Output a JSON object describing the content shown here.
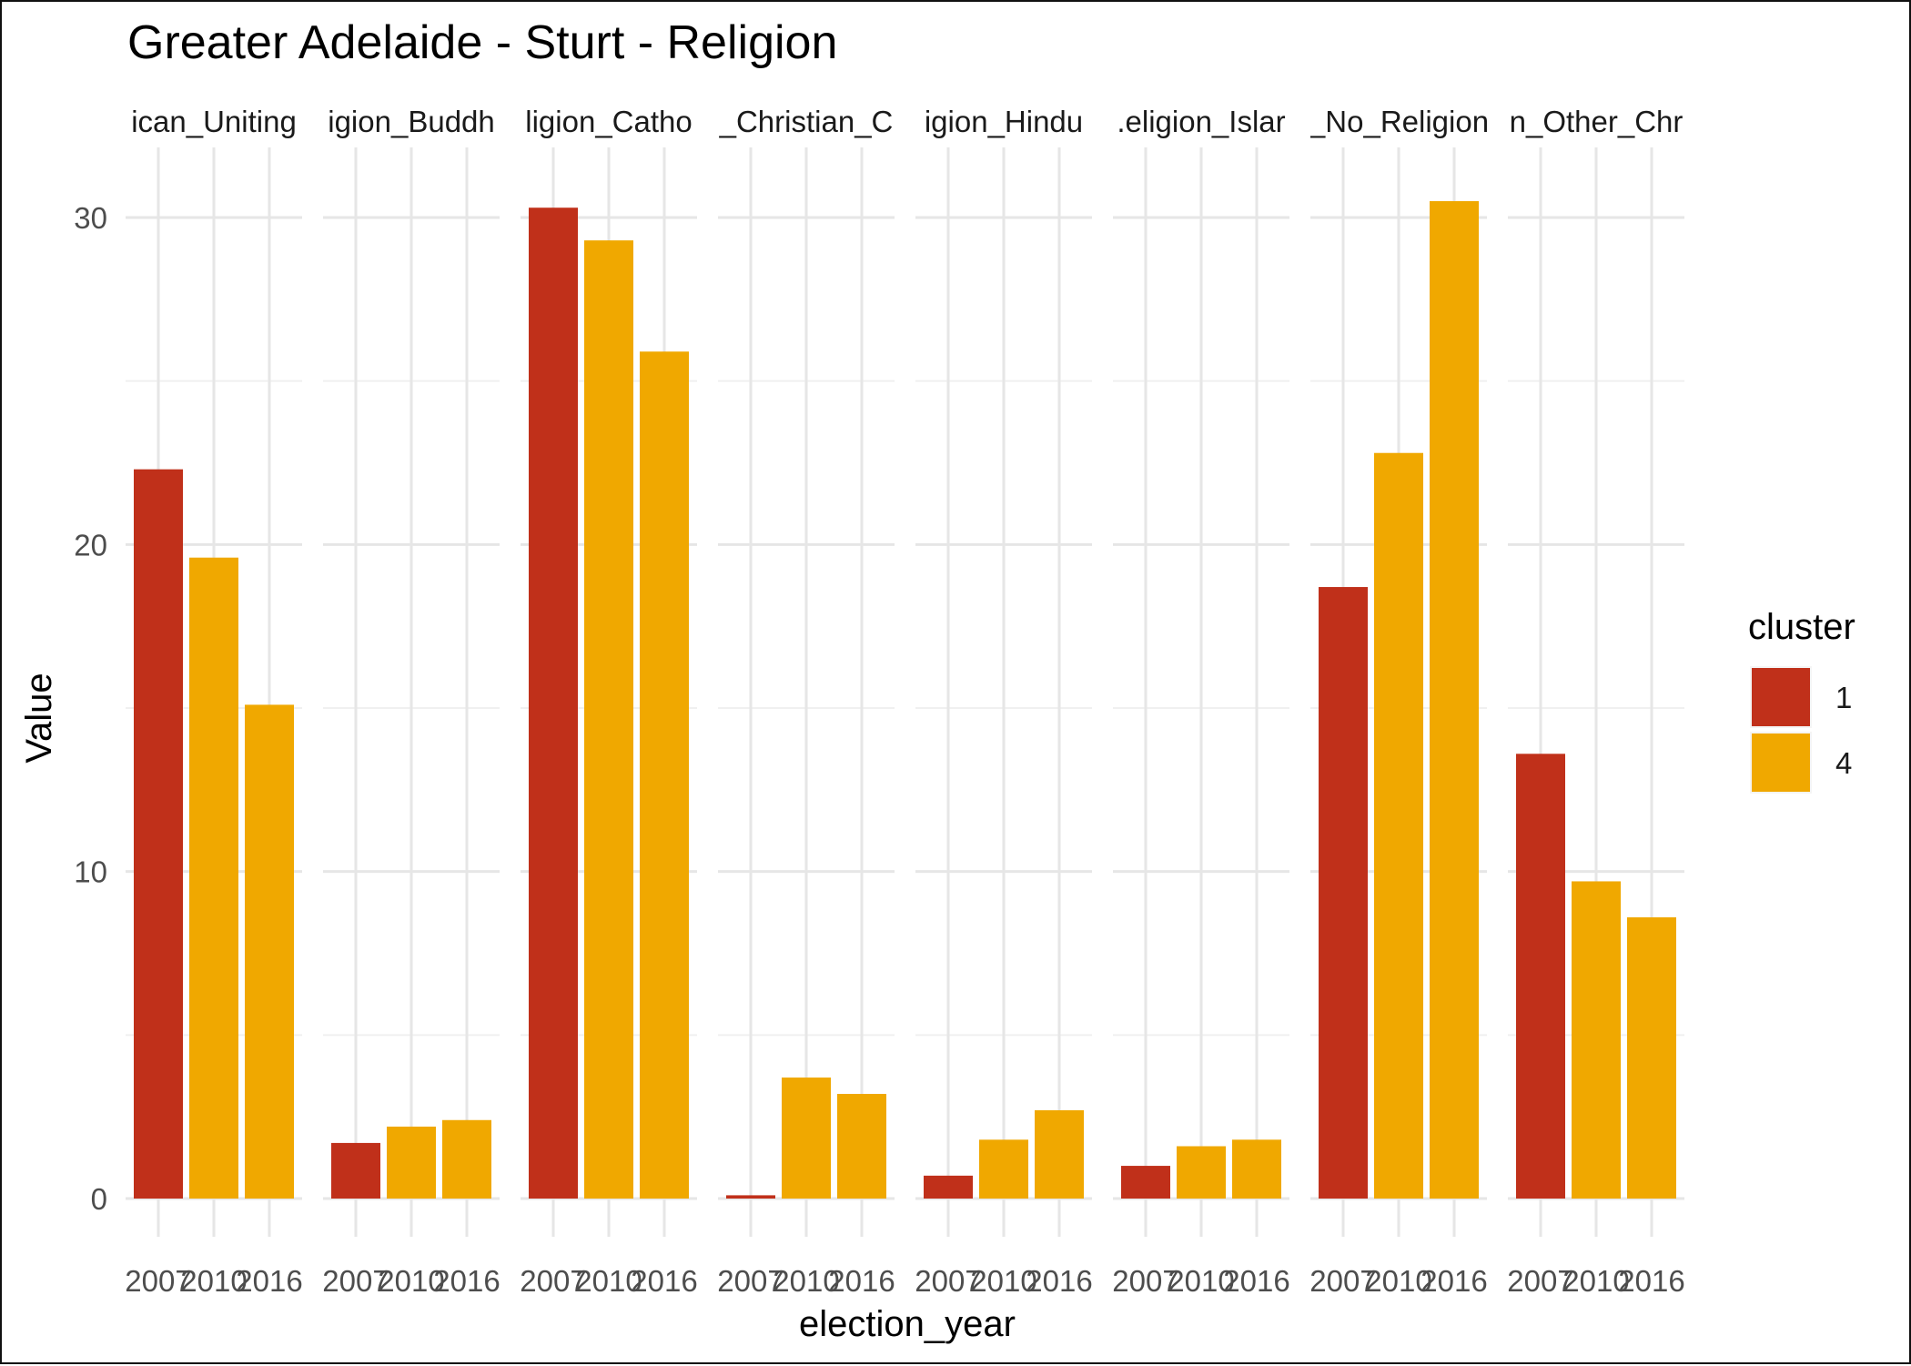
{
  "chart_data": {
    "type": "bar",
    "title": "Greater Adelaide - Sturt - Religion",
    "xlabel": "election_year",
    "ylabel": "Value",
    "ylim": [
      0,
      31
    ],
    "yticks": [
      0,
      10,
      20,
      30
    ],
    "grid": true,
    "legend": {
      "title": "cluster",
      "position": "right"
    },
    "clusters": [
      {
        "name": "1",
        "color": "#C0301A"
      },
      {
        "name": "4",
        "color": "#F0A800"
      }
    ],
    "categories": [
      "2007",
      "2010",
      "2016"
    ],
    "panels": [
      {
        "label": "ican_Uniting",
        "values": [
          22.3,
          19.6,
          15.1
        ],
        "clusters": [
          "1",
          "4",
          "4"
        ]
      },
      {
        "label": "igion_Buddh",
        "values": [
          1.7,
          2.2,
          2.4
        ],
        "clusters": [
          "1",
          "4",
          "4"
        ]
      },
      {
        "label": "ligion_Catho",
        "values": [
          30.3,
          29.3,
          25.9
        ],
        "clusters": [
          "1",
          "4",
          "4"
        ]
      },
      {
        "label": "_Christian_C",
        "values": [
          0.1,
          3.7,
          3.2
        ],
        "clusters": [
          "1",
          "4",
          "4"
        ]
      },
      {
        "label": "igion_Hindu",
        "values": [
          0.7,
          1.8,
          2.7
        ],
        "clusters": [
          "1",
          "4",
          "4"
        ]
      },
      {
        "label": ".eligion_Islar",
        "values": [
          1.0,
          1.6,
          1.8
        ],
        "clusters": [
          "1",
          "4",
          "4"
        ]
      },
      {
        "label": "_No_Religion",
        "values": [
          18.7,
          22.8,
          30.5
        ],
        "clusters": [
          "1",
          "4",
          "4"
        ]
      },
      {
        "label": "n_Other_Chr",
        "values": [
          13.6,
          9.7,
          8.6
        ],
        "clusters": [
          "1",
          "4",
          "4"
        ]
      }
    ]
  }
}
